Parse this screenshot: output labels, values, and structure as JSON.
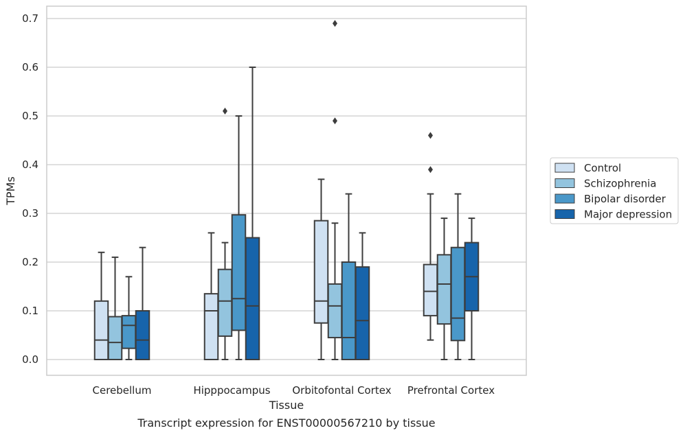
{
  "chart_data": {
    "type": "box",
    "caption": "Transcript expression for ENST00000567210 by tissue",
    "xlabel": "Tissue",
    "ylabel": "TPMs",
    "ylim": [
      -0.034,
      0.726
    ],
    "yticks": [
      "0.0",
      "0.1",
      "0.2",
      "0.3",
      "0.4",
      "0.5",
      "0.6",
      "0.7"
    ],
    "grid": "horizontal",
    "legend_position": "right",
    "categories": [
      "Cerebellum",
      "Hipppocampus",
      "Orbitofontal Cortex",
      "Prefrontal Cortex"
    ],
    "series": [
      {
        "name": "Control",
        "color": "#cfe1f2",
        "boxes": [
          {
            "whislo": 0.0,
            "q1": 0.0,
            "med": 0.04,
            "q3": 0.12,
            "whishi": 0.22,
            "fliers": []
          },
          {
            "whislo": 0.0,
            "q1": 0.0,
            "med": 0.1,
            "q3": 0.135,
            "whishi": 0.26,
            "fliers": []
          },
          {
            "whislo": 0.0,
            "q1": 0.075,
            "med": 0.12,
            "q3": 0.285,
            "whishi": 0.37,
            "fliers": []
          },
          {
            "whislo": 0.04,
            "q1": 0.09,
            "med": 0.14,
            "q3": 0.195,
            "whishi": 0.34,
            "fliers": [
              0.39,
              0.46
            ]
          }
        ]
      },
      {
        "name": "Schizophrenia",
        "color": "#93c4de",
        "boxes": [
          {
            "whislo": 0.0,
            "q1": 0.0,
            "med": 0.035,
            "q3": 0.088,
            "whishi": 0.21,
            "fliers": []
          },
          {
            "whislo": 0.0,
            "q1": 0.048,
            "med": 0.12,
            "q3": 0.185,
            "whishi": 0.24,
            "fliers": [
              0.51
            ]
          },
          {
            "whislo": 0.0,
            "q1": 0.045,
            "med": 0.11,
            "q3": 0.155,
            "whishi": 0.28,
            "fliers": [
              0.49,
              0.69
            ]
          },
          {
            "whislo": 0.0,
            "q1": 0.073,
            "med": 0.155,
            "q3": 0.215,
            "whishi": 0.29,
            "fliers": []
          }
        ]
      },
      {
        "name": "Bipolar disorder",
        "color": "#4a98c9",
        "boxes": [
          {
            "whislo": 0.0,
            "q1": 0.023,
            "med": 0.07,
            "q3": 0.09,
            "whishi": 0.17,
            "fliers": []
          },
          {
            "whislo": 0.0,
            "q1": 0.06,
            "med": 0.125,
            "q3": 0.297,
            "whishi": 0.5,
            "fliers": []
          },
          {
            "whislo": 0.0,
            "q1": 0.0,
            "med": 0.045,
            "q3": 0.2,
            "whishi": 0.34,
            "fliers": []
          },
          {
            "whislo": 0.0,
            "q1": 0.039,
            "med": 0.085,
            "q3": 0.23,
            "whishi": 0.34,
            "fliers": []
          }
        ]
      },
      {
        "name": "Major depression",
        "color": "#1764ab",
        "boxes": [
          {
            "whislo": 0.0,
            "q1": 0.0,
            "med": 0.04,
            "q3": 0.1,
            "whishi": 0.23,
            "fliers": []
          },
          {
            "whislo": 0.0,
            "q1": 0.0,
            "med": 0.11,
            "q3": 0.25,
            "whishi": 0.6,
            "fliers": []
          },
          {
            "whislo": 0.0,
            "q1": 0.0,
            "med": 0.08,
            "q3": 0.19,
            "whishi": 0.26,
            "fliers": []
          },
          {
            "whislo": 0.0,
            "q1": 0.1,
            "med": 0.17,
            "q3": 0.24,
            "whishi": 0.29,
            "fliers": []
          }
        ]
      }
    ]
  }
}
